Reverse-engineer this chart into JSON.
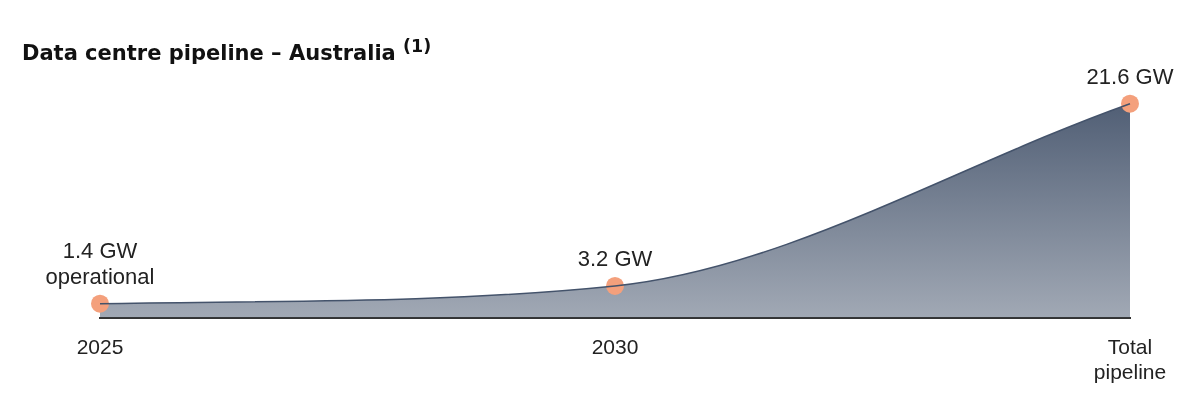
{
  "chart_data": {
    "type": "area",
    "title": "Data centre pipeline – Australia $^{(1)}$",
    "categories": [
      "2025",
      "2030",
      "Total pipeline"
    ],
    "series": [
      {
        "color": "#44536b",
        "values": [
          1.4,
          3.2,
          21.6
        ]
      },
      {
        "type": "scatter",
        "marker": "circle",
        "color": "#f4a07c",
        "values": [
          1.4,
          3.2,
          21.6
        ],
        "value_labels": [
          "1.4 GW\noperational",
          "3.2 GW",
          "21.6 GW"
        ]
      }
    ],
    "grid": false,
    "legend": false
  }
}
